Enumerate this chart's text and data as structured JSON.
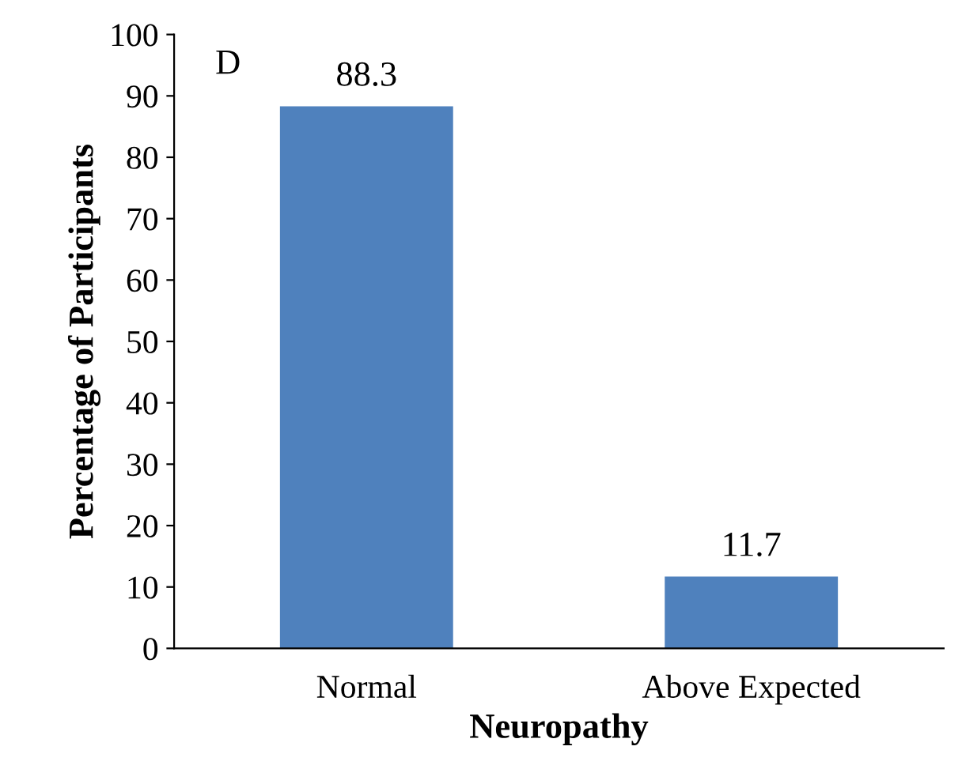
{
  "chart_data": {
    "type": "bar",
    "xlabel": "Neuropathy",
    "ylabel": "Percentage of Participants",
    "categories": [
      "Normal",
      "Above Expected"
    ],
    "values": [
      88.3,
      11.7
    ],
    "color": "#4f81bd",
    "ylim": [
      0,
      100
    ],
    "yticks": [
      0,
      10,
      20,
      30,
      40,
      50,
      60,
      70,
      80,
      90,
      100
    ],
    "data_labels": true,
    "grid": false,
    "legend": false,
    "annotations": [
      "D"
    ]
  }
}
